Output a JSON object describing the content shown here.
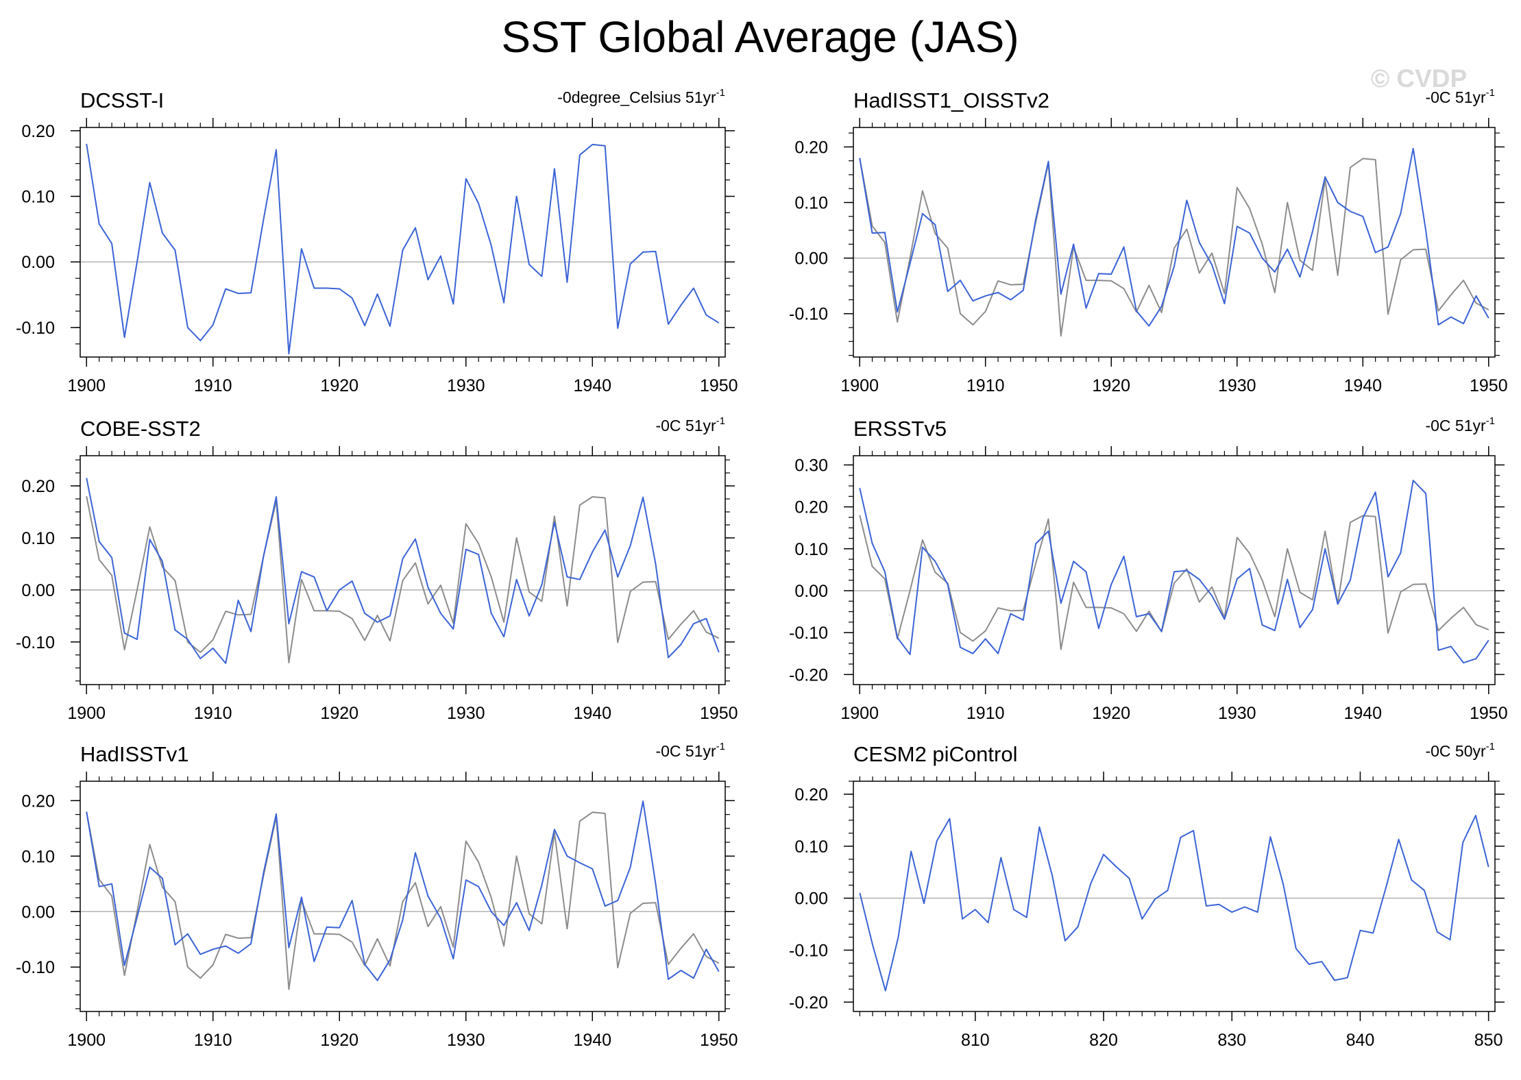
{
  "page_title": "SST Global Average (JAS)",
  "watermark": "© CVDP",
  "colors": {
    "series_main": "#3a63d6",
    "series_ref": "#8c8c8c",
    "zero_line": "#b3b3b3"
  },
  "chart_data": [
    {
      "type": "line",
      "title": "DCSST-I",
      "corner_label": "-0degree_Celsius 51yr",
      "corner_sup": "-1",
      "x_ticks": [
        1900,
        1910,
        1920,
        1930,
        1940,
        1950
      ],
      "x_tick_labels": [
        "1900",
        "1910",
        "1920",
        "1930",
        "1940",
        "1950"
      ],
      "y_ticks": [
        0.2,
        0.1,
        0,
        -0.1
      ],
      "y_tick_labels": [
        "0.20",
        "0.10",
        "0.00",
        "-0.10"
      ],
      "xlim": [
        1899.5,
        1950.5
      ],
      "ylim": [
        -0.145,
        0.205
      ],
      "x_start": 1900,
      "series": [
        {
          "name": "DCSST-I",
          "values": [
            0.18,
            0.058,
            0.028,
            -0.115,
            0.0,
            0.121,
            0.044,
            0.018,
            -0.1,
            -0.12,
            -0.096,
            -0.041,
            -0.048,
            -0.047,
            0.065,
            0.171,
            -0.14,
            0.02,
            -0.04,
            -0.04,
            -0.041,
            -0.055,
            -0.097,
            -0.049,
            -0.098,
            0.018,
            0.052,
            -0.027,
            0.009,
            -0.064,
            0.127,
            0.089,
            0.025,
            -0.062,
            0.1,
            -0.004,
            -0.022,
            0.142,
            -0.031,
            0.163,
            0.179,
            0.177,
            -0.101,
            -0.003,
            0.015,
            0.016,
            -0.095,
            -0.066,
            -0.04,
            -0.081,
            -0.093
          ]
        }
      ]
    },
    {
      "type": "line",
      "title": "HadISST1_OISSTv2",
      "corner_label": "-0C 51yr",
      "corner_sup": "-1",
      "x_ticks": [
        1900,
        1910,
        1920,
        1930,
        1940,
        1950
      ],
      "x_tick_labels": [
        "1900",
        "1910",
        "1920",
        "1930",
        "1940",
        "1950"
      ],
      "y_ticks": [
        0.2,
        0.1,
        0,
        -0.1
      ],
      "y_tick_labels": [
        "0.20",
        "0.10",
        "0.00",
        "-0.10"
      ],
      "xlim": [
        1899.5,
        1950.5
      ],
      "ylim": [
        -0.178,
        0.235
      ],
      "x_start": 1900,
      "series": [
        {
          "name": "reference",
          "ref": true,
          "values": [
            0.18,
            0.058,
            0.028,
            -0.115,
            0.0,
            0.121,
            0.044,
            0.018,
            -0.1,
            -0.12,
            -0.096,
            -0.041,
            -0.048,
            -0.047,
            0.065,
            0.171,
            -0.14,
            0.02,
            -0.04,
            -0.04,
            -0.041,
            -0.055,
            -0.097,
            -0.049,
            -0.098,
            0.018,
            0.052,
            -0.027,
            0.009,
            -0.064,
            0.127,
            0.089,
            0.025,
            -0.062,
            0.1,
            -0.004,
            -0.022,
            0.142,
            -0.031,
            0.163,
            0.179,
            0.177,
            -0.101,
            -0.003,
            0.015,
            0.016,
            -0.095,
            -0.066,
            -0.04,
            -0.081,
            -0.093
          ]
        },
        {
          "name": "HadISST1_OISSTv2",
          "values": [
            0.18,
            0.045,
            0.046,
            -0.097,
            -0.01,
            0.08,
            0.06,
            -0.06,
            -0.04,
            -0.077,
            -0.068,
            -0.062,
            -0.075,
            -0.058,
            0.07,
            0.174,
            -0.065,
            0.025,
            -0.09,
            -0.028,
            -0.029,
            0.02,
            -0.095,
            -0.122,
            -0.087,
            -0.015,
            0.104,
            0.028,
            -0.012,
            -0.082,
            0.057,
            0.045,
            0.0,
            -0.025,
            0.016,
            -0.034,
            0.048,
            0.146,
            0.1,
            0.084,
            0.075,
            0.01,
            0.02,
            0.08,
            0.197,
            0.05,
            -0.12,
            -0.106,
            -0.118,
            -0.068,
            -0.108
          ]
        }
      ]
    },
    {
      "type": "line",
      "title": "COBE-SST2",
      "corner_label": "-0C 51yr",
      "corner_sup": "-1",
      "x_ticks": [
        1900,
        1910,
        1920,
        1930,
        1940,
        1950
      ],
      "x_tick_labels": [
        "1900",
        "1910",
        "1920",
        "1930",
        "1940",
        "1950"
      ],
      "y_ticks": [
        0.2,
        0.1,
        0,
        -0.1
      ],
      "y_tick_labels": [
        "0.20",
        "0.10",
        "0.00",
        "-0.10"
      ],
      "xlim": [
        1899.5,
        1950.5
      ],
      "ylim": [
        -0.182,
        0.258
      ],
      "x_start": 1900,
      "series": [
        {
          "name": "reference",
          "ref": true,
          "values": [
            0.18,
            0.058,
            0.028,
            -0.115,
            0.0,
            0.121,
            0.044,
            0.018,
            -0.1,
            -0.12,
            -0.096,
            -0.041,
            -0.048,
            -0.047,
            0.065,
            0.171,
            -0.14,
            0.02,
            -0.04,
            -0.04,
            -0.041,
            -0.055,
            -0.097,
            -0.049,
            -0.098,
            0.018,
            0.052,
            -0.027,
            0.009,
            -0.064,
            0.127,
            0.089,
            0.025,
            -0.062,
            0.1,
            -0.004,
            -0.022,
            0.142,
            -0.031,
            0.163,
            0.179,
            0.177,
            -0.101,
            -0.003,
            0.015,
            0.016,
            -0.095,
            -0.066,
            -0.04,
            -0.081,
            -0.093
          ]
        },
        {
          "name": "COBE-SST2",
          "values": [
            0.215,
            0.093,
            0.062,
            -0.083,
            -0.095,
            0.097,
            0.055,
            -0.077,
            -0.095,
            -0.132,
            -0.112,
            -0.141,
            -0.02,
            -0.08,
            0.065,
            0.179,
            -0.065,
            0.035,
            0.025,
            -0.04,
            0.0,
            0.017,
            -0.045,
            -0.062,
            -0.05,
            0.06,
            0.098,
            0.005,
            -0.045,
            -0.075,
            0.078,
            0.068,
            -0.045,
            -0.09,
            0.02,
            -0.05,
            0.01,
            0.13,
            0.025,
            0.02,
            0.073,
            0.115,
            0.025,
            0.085,
            0.178,
            0.05,
            -0.13,
            -0.105,
            -0.065,
            -0.055,
            -0.12
          ]
        }
      ]
    },
    {
      "type": "line",
      "title": "ERSSTv5",
      "corner_label": "-0C 51yr",
      "corner_sup": "-1",
      "x_ticks": [
        1900,
        1910,
        1920,
        1930,
        1940,
        1950
      ],
      "x_tick_labels": [
        "1900",
        "1910",
        "1920",
        "1930",
        "1940",
        "1950"
      ],
      "y_ticks": [
        0.3,
        0.2,
        0.1,
        0,
        -0.1,
        -0.2
      ],
      "y_tick_labels": [
        "0.30",
        "0.20",
        "0.10",
        "0.00",
        "-0.10",
        "-0.20"
      ],
      "xlim": [
        1899.5,
        1950.5
      ],
      "ylim": [
        -0.224,
        0.322
      ],
      "x_start": 1900,
      "series": [
        {
          "name": "reference",
          "ref": true,
          "values": [
            0.18,
            0.058,
            0.028,
            -0.115,
            0.0,
            0.121,
            0.044,
            0.018,
            -0.1,
            -0.12,
            -0.096,
            -0.041,
            -0.048,
            -0.047,
            0.065,
            0.171,
            -0.14,
            0.02,
            -0.04,
            -0.04,
            -0.041,
            -0.055,
            -0.097,
            -0.049,
            -0.098,
            0.018,
            0.052,
            -0.027,
            0.009,
            -0.064,
            0.127,
            0.089,
            0.025,
            -0.062,
            0.1,
            -0.004,
            -0.022,
            0.142,
            -0.031,
            0.163,
            0.179,
            0.177,
            -0.101,
            -0.003,
            0.015,
            0.016,
            -0.095,
            -0.066,
            -0.04,
            -0.081,
            -0.093
          ]
        },
        {
          "name": "ERSSTv5",
          "values": [
            0.245,
            0.113,
            0.045,
            -0.112,
            -0.152,
            0.104,
            0.07,
            0.015,
            -0.135,
            -0.15,
            -0.115,
            -0.15,
            -0.055,
            -0.07,
            0.112,
            0.142,
            -0.03,
            0.07,
            0.045,
            -0.09,
            0.015,
            0.082,
            -0.062,
            -0.055,
            -0.097,
            0.045,
            0.048,
            0.027,
            -0.012,
            -0.068,
            0.028,
            0.053,
            -0.082,
            -0.095,
            0.027,
            -0.088,
            -0.045,
            0.1,
            -0.032,
            0.025,
            0.173,
            0.235,
            0.033,
            0.09,
            0.263,
            0.232,
            -0.142,
            -0.133,
            -0.172,
            -0.162,
            -0.118
          ]
        }
      ]
    },
    {
      "type": "line",
      "title": "HadISSTv1",
      "corner_label": "-0C 51yr",
      "corner_sup": "-1",
      "x_ticks": [
        1900,
        1910,
        1920,
        1930,
        1940,
        1950
      ],
      "x_tick_labels": [
        "1900",
        "1910",
        "1920",
        "1930",
        "1940",
        "1950"
      ],
      "y_ticks": [
        0.2,
        0.1,
        0,
        -0.1
      ],
      "y_tick_labels": [
        "0.20",
        "0.10",
        "0.00",
        "-0.10"
      ],
      "xlim": [
        1899.5,
        1950.5
      ],
      "ylim": [
        -0.18,
        0.235
      ],
      "x_start": 1900,
      "series": [
        {
          "name": "reference",
          "ref": true,
          "values": [
            0.18,
            0.058,
            0.028,
            -0.115,
            0.0,
            0.121,
            0.044,
            0.018,
            -0.1,
            -0.12,
            -0.096,
            -0.041,
            -0.048,
            -0.047,
            0.065,
            0.171,
            -0.14,
            0.02,
            -0.04,
            -0.04,
            -0.041,
            -0.055,
            -0.097,
            -0.049,
            -0.098,
            0.018,
            0.052,
            -0.027,
            0.009,
            -0.064,
            0.127,
            0.089,
            0.025,
            -0.062,
            0.1,
            -0.004,
            -0.022,
            0.142,
            -0.031,
            0.163,
            0.179,
            0.177,
            -0.101,
            -0.003,
            0.015,
            0.016,
            -0.095,
            -0.066,
            -0.04,
            -0.081,
            -0.093
          ]
        },
        {
          "name": "HadISSTv1",
          "values": [
            0.18,
            0.045,
            0.05,
            -0.097,
            -0.01,
            0.08,
            0.06,
            -0.06,
            -0.04,
            -0.077,
            -0.068,
            -0.062,
            -0.075,
            -0.058,
            0.07,
            0.176,
            -0.065,
            0.026,
            -0.09,
            -0.028,
            -0.029,
            0.02,
            -0.095,
            -0.124,
            -0.087,
            -0.015,
            0.106,
            0.028,
            -0.012,
            -0.085,
            0.057,
            0.045,
            0.0,
            -0.025,
            0.016,
            -0.034,
            0.048,
            0.148,
            0.1,
            0.088,
            0.077,
            0.01,
            0.02,
            0.08,
            0.199,
            0.05,
            -0.122,
            -0.106,
            -0.12,
            -0.068,
            -0.108
          ]
        }
      ]
    },
    {
      "type": "line",
      "title": "CESM2 piControl",
      "corner_label": "-0C 50yr",
      "corner_sup": "-1",
      "x_ticks": [
        810,
        820,
        830,
        840,
        850
      ],
      "x_tick_labels": [
        "810",
        "820",
        "830",
        "840",
        "850"
      ],
      "y_ticks": [
        0.2,
        0.1,
        0,
        -0.1,
        -0.2
      ],
      "y_tick_labels": [
        "0.20",
        "0.10",
        "0.00",
        "-0.10",
        "-0.20"
      ],
      "xlim": [
        800.5,
        850.5
      ],
      "ylim": [
        -0.218,
        0.225
      ],
      "x_start": 801,
      "series": [
        {
          "name": "CESM2 piControl",
          "values": [
            0.01,
            -0.09,
            -0.178,
            -0.075,
            0.09,
            -0.01,
            0.11,
            0.153,
            -0.04,
            -0.022,
            -0.047,
            0.078,
            -0.022,
            -0.037,
            0.137,
            0.043,
            -0.082,
            -0.055,
            0.028,
            0.084,
            0.06,
            0.038,
            -0.04,
            -0.002,
            0.015,
            0.117,
            0.13,
            -0.015,
            -0.012,
            -0.027,
            -0.017,
            -0.027,
            0.118,
            0.027,
            -0.097,
            -0.127,
            -0.122,
            -0.158,
            -0.153,
            -0.062,
            -0.067,
            0.02,
            0.113,
            0.035,
            0.015,
            -0.065,
            -0.08,
            0.107,
            0.159,
            0.06
          ]
        }
      ]
    }
  ]
}
